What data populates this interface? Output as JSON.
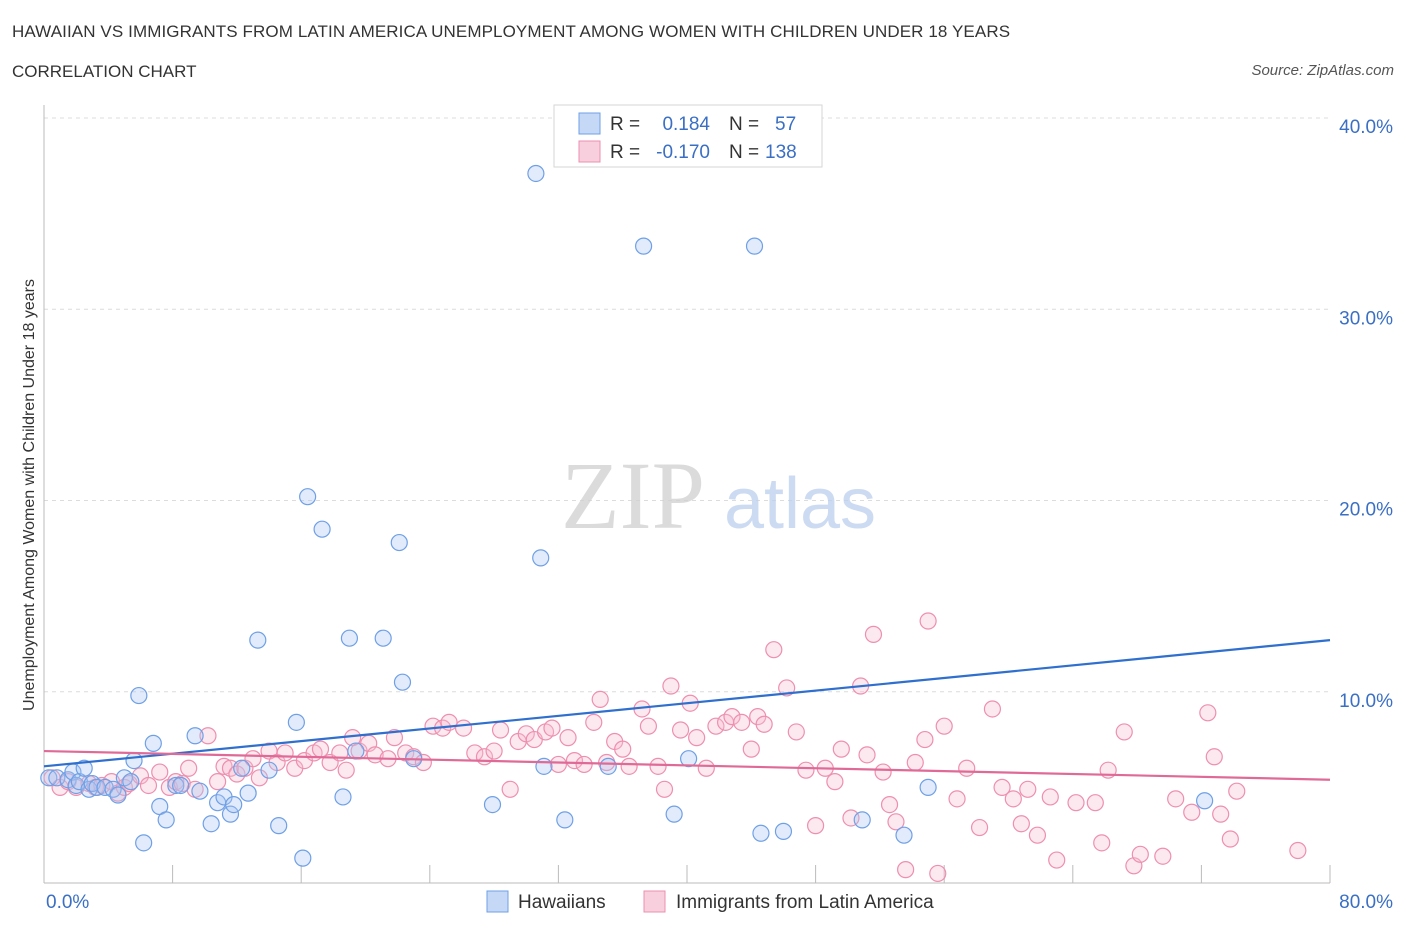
{
  "title": "HAWAIIAN VS IMMIGRANTS FROM LATIN AMERICA UNEMPLOYMENT AMONG WOMEN WITH CHILDREN UNDER 18 YEARS",
  "subtitle": "CORRELATION CHART",
  "source": "Source: ZipAtlas.com",
  "watermark": {
    "zip": "ZIP",
    "atlas": "atlas"
  },
  "colors": {
    "hawaiians": "#6fa0e6",
    "latin": "#ee8fb0",
    "hawaiians_line": "#2f6fce",
    "latin_line": "#e06a96",
    "axis_label": "#3a6fc4"
  },
  "legend_box": {
    "rows": [
      {
        "r_label": "R =",
        "r_value": "0.184",
        "n_label": "N =",
        "n_value": "57"
      },
      {
        "r_label": "R =",
        "r_value": "-0.170",
        "n_label": "N =",
        "n_value": "138"
      }
    ]
  },
  "chart_data": {
    "type": "scatter",
    "title": "HAWAIIAN VS IMMIGRANTS FROM LATIN AMERICA UNEMPLOYMENT AMONG WOMEN WITH CHILDREN UNDER 18 YEARS",
    "subtitle": "CORRELATION CHART",
    "xlabel": "",
    "ylabel": "Unemployment Among Women with Children Under 18 years",
    "xlim": [
      0,
      80
    ],
    "ylim": [
      0,
      40
    ],
    "x_tick_labels": [
      "0.0%",
      "80.0%"
    ],
    "y_tick_labels": [
      "10.0%",
      "20.0%",
      "30.0%",
      "40.0%"
    ],
    "y_ticks": [
      10,
      20,
      30,
      40
    ],
    "grid": true,
    "legend_position": "bottom",
    "series": [
      {
        "name": "Hawaiians",
        "trend": {
          "x": [
            0,
            80
          ],
          "y": [
            6.1,
            12.7
          ]
        },
        "points": [
          [
            0.3,
            5.5
          ],
          [
            0.8,
            5.5
          ],
          [
            1.5,
            5.4
          ],
          [
            1.8,
            5.8
          ],
          [
            2.0,
            5.1
          ],
          [
            2.2,
            5.3
          ],
          [
            2.5,
            6.0
          ],
          [
            2.8,
            4.9
          ],
          [
            3.0,
            5.2
          ],
          [
            3.3,
            5.0
          ],
          [
            3.8,
            5.0
          ],
          [
            4.3,
            4.9
          ],
          [
            4.6,
            4.6
          ],
          [
            5.0,
            5.5
          ],
          [
            5.4,
            5.3
          ],
          [
            5.6,
            6.4
          ],
          [
            5.9,
            9.8
          ],
          [
            6.2,
            2.1
          ],
          [
            6.8,
            7.3
          ],
          [
            7.2,
            4.0
          ],
          [
            7.6,
            3.3
          ],
          [
            8.2,
            5.1
          ],
          [
            8.5,
            5.1
          ],
          [
            9.4,
            7.7
          ],
          [
            9.7,
            4.8
          ],
          [
            10.4,
            3.1
          ],
          [
            10.8,
            4.2
          ],
          [
            11.2,
            4.5
          ],
          [
            11.6,
            3.6
          ],
          [
            11.8,
            4.1
          ],
          [
            12.3,
            6.0
          ],
          [
            12.7,
            4.7
          ],
          [
            13.3,
            12.7
          ],
          [
            14.0,
            5.9
          ],
          [
            14.6,
            3.0
          ],
          [
            15.7,
            8.4
          ],
          [
            16.1,
            1.3
          ],
          [
            16.4,
            20.2
          ],
          [
            17.3,
            18.5
          ],
          [
            18.6,
            4.5
          ],
          [
            19.0,
            12.8
          ],
          [
            19.4,
            6.9
          ],
          [
            21.1,
            12.8
          ],
          [
            22.1,
            17.8
          ],
          [
            22.3,
            10.5
          ],
          [
            23.0,
            6.5
          ],
          [
            27.9,
            4.1
          ],
          [
            30.6,
            37.1
          ],
          [
            30.9,
            17.0
          ],
          [
            31.1,
            6.1
          ],
          [
            32.4,
            3.3
          ],
          [
            35.1,
            6.1
          ],
          [
            37.3,
            33.3
          ],
          [
            39.2,
            3.6
          ],
          [
            40.1,
            6.5
          ],
          [
            44.2,
            33.3
          ],
          [
            44.6,
            2.6
          ],
          [
            46.0,
            2.7
          ],
          [
            50.9,
            3.3
          ],
          [
            53.5,
            2.5
          ],
          [
            55.0,
            5.0
          ],
          [
            72.2,
            4.3
          ]
        ]
      },
      {
        "name": "Immigrants from Latin America",
        "trend": {
          "x": [
            0,
            80
          ],
          "y": [
            6.9,
            5.4
          ]
        },
        "points": [
          [
            0.5,
            5.5
          ],
          [
            1.0,
            5.0
          ],
          [
            1.5,
            5.3
          ],
          [
            2.0,
            5.0
          ],
          [
            2.8,
            5.2
          ],
          [
            3.2,
            5.0
          ],
          [
            3.6,
            5.1
          ],
          [
            4.2,
            5.3
          ],
          [
            4.6,
            4.7
          ],
          [
            5.0,
            5.0
          ],
          [
            5.3,
            5.2
          ],
          [
            6.0,
            5.6
          ],
          [
            6.5,
            5.1
          ],
          [
            7.2,
            5.8
          ],
          [
            7.8,
            5.0
          ],
          [
            8.2,
            5.3
          ],
          [
            8.6,
            5.2
          ],
          [
            9.0,
            6.0
          ],
          [
            9.4,
            4.9
          ],
          [
            10.2,
            7.7
          ],
          [
            10.8,
            5.3
          ],
          [
            11.2,
            6.1
          ],
          [
            11.6,
            6.0
          ],
          [
            12.0,
            5.7
          ],
          [
            12.5,
            6.0
          ],
          [
            13.0,
            6.5
          ],
          [
            13.4,
            5.5
          ],
          [
            14.0,
            6.9
          ],
          [
            14.5,
            6.3
          ],
          [
            15.0,
            6.8
          ],
          [
            15.6,
            6.0
          ],
          [
            16.2,
            6.4
          ],
          [
            16.8,
            6.8
          ],
          [
            17.2,
            7.0
          ],
          [
            17.8,
            6.3
          ],
          [
            18.4,
            6.8
          ],
          [
            18.8,
            5.9
          ],
          [
            19.2,
            7.6
          ],
          [
            19.6,
            6.9
          ],
          [
            20.2,
            7.3
          ],
          [
            20.6,
            6.7
          ],
          [
            21.4,
            6.5
          ],
          [
            21.8,
            7.6
          ],
          [
            22.5,
            6.8
          ],
          [
            23.0,
            6.6
          ],
          [
            23.6,
            6.3
          ],
          [
            24.2,
            8.2
          ],
          [
            24.8,
            8.1
          ],
          [
            25.2,
            8.4
          ],
          [
            26.1,
            8.1
          ],
          [
            26.8,
            6.8
          ],
          [
            27.4,
            6.6
          ],
          [
            28.0,
            6.9
          ],
          [
            28.4,
            8.0
          ],
          [
            29.0,
            4.9
          ],
          [
            29.5,
            7.4
          ],
          [
            30.0,
            7.8
          ],
          [
            30.5,
            7.5
          ],
          [
            31.2,
            7.9
          ],
          [
            31.6,
            8.1
          ],
          [
            32.0,
            6.2
          ],
          [
            32.6,
            7.6
          ],
          [
            33.0,
            6.4
          ],
          [
            33.6,
            6.2
          ],
          [
            34.2,
            8.4
          ],
          [
            34.6,
            9.6
          ],
          [
            35.0,
            6.3
          ],
          [
            35.5,
            7.4
          ],
          [
            36.0,
            7.0
          ],
          [
            36.4,
            6.1
          ],
          [
            37.2,
            9.1
          ],
          [
            37.6,
            8.2
          ],
          [
            38.2,
            6.1
          ],
          [
            38.6,
            4.9
          ],
          [
            39.0,
            10.3
          ],
          [
            39.6,
            8.0
          ],
          [
            40.2,
            9.4
          ],
          [
            40.6,
            7.6
          ],
          [
            41.2,
            6.0
          ],
          [
            41.8,
            8.2
          ],
          [
            42.4,
            8.4
          ],
          [
            42.8,
            8.7
          ],
          [
            43.4,
            8.4
          ],
          [
            44.0,
            7.0
          ],
          [
            44.4,
            8.7
          ],
          [
            44.8,
            8.3
          ],
          [
            45.4,
            12.2
          ],
          [
            46.2,
            10.2
          ],
          [
            46.8,
            7.9
          ],
          [
            47.4,
            5.9
          ],
          [
            48.0,
            3.0
          ],
          [
            48.6,
            6.0
          ],
          [
            49.2,
            5.3
          ],
          [
            49.6,
            7.0
          ],
          [
            50.2,
            3.4
          ],
          [
            50.8,
            10.3
          ],
          [
            51.2,
            6.7
          ],
          [
            51.6,
            13.0
          ],
          [
            52.2,
            5.8
          ],
          [
            52.6,
            4.1
          ],
          [
            53.0,
            3.2
          ],
          [
            53.6,
            0.7
          ],
          [
            54.2,
            6.3
          ],
          [
            54.8,
            7.5
          ],
          [
            55.0,
            13.7
          ],
          [
            55.6,
            0.5
          ],
          [
            56.0,
            8.2
          ],
          [
            56.8,
            4.4
          ],
          [
            57.4,
            6.0
          ],
          [
            58.2,
            2.9
          ],
          [
            59.0,
            9.1
          ],
          [
            59.6,
            5.0
          ],
          [
            60.3,
            4.4
          ],
          [
            60.8,
            3.1
          ],
          [
            61.2,
            4.9
          ],
          [
            61.8,
            2.5
          ],
          [
            62.6,
            4.5
          ],
          [
            63.0,
            1.2
          ],
          [
            64.2,
            4.2
          ],
          [
            65.4,
            4.2
          ],
          [
            65.8,
            2.1
          ],
          [
            66.2,
            5.9
          ],
          [
            67.2,
            7.9
          ],
          [
            67.8,
            0.9
          ],
          [
            68.2,
            1.5
          ],
          [
            69.6,
            1.4
          ],
          [
            70.4,
            4.4
          ],
          [
            71.4,
            3.7
          ],
          [
            72.4,
            8.9
          ],
          [
            72.8,
            6.6
          ],
          [
            73.2,
            3.6
          ],
          [
            73.8,
            2.3
          ],
          [
            74.2,
            4.8
          ],
          [
            78.0,
            1.7
          ]
        ]
      }
    ]
  },
  "bottom_legend": [
    {
      "label": "Hawaiians"
    },
    {
      "label": "Immigrants from Latin America"
    }
  ]
}
